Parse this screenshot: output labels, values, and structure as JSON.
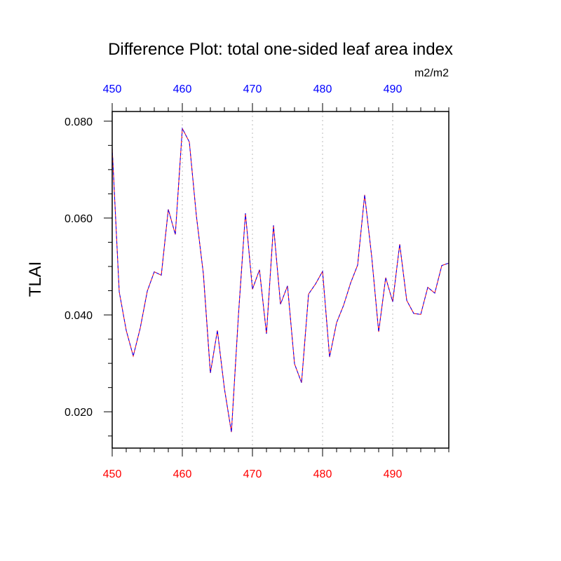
{
  "chart_data": {
    "type": "line",
    "title": "Difference Plot: total one-sided leaf area index",
    "units": "m2/m2",
    "ylabel": "TLAI",
    "xlabel": "",
    "xlim": [
      450,
      498
    ],
    "ylim": [
      0.0125,
      0.082
    ],
    "x_ticks": [
      450,
      460,
      470,
      480,
      490
    ],
    "x_tick_labels": [
      "450",
      "460",
      "470",
      "480",
      "490"
    ],
    "y_ticks": [
      0.02,
      0.04,
      0.06,
      0.08
    ],
    "y_tick_labels": [
      "0.020",
      "0.040",
      "0.060",
      "0.080"
    ],
    "grid": "vertical dotted at major x ticks",
    "colors": {
      "bottom_tick_labels": "#ff0000",
      "top_tick_labels": "#0000ff",
      "series_a": "#ff0000",
      "series_b": "#0000ff",
      "grid": "#bbbbbb"
    },
    "x": [
      450,
      451,
      452,
      453,
      454,
      455,
      456,
      457,
      458,
      459,
      460,
      461,
      462,
      463,
      464,
      465,
      466,
      467,
      468,
      469,
      470,
      471,
      472,
      473,
      474,
      475,
      476,
      477,
      478,
      479,
      480,
      481,
      482,
      483,
      484,
      485,
      486,
      487,
      488,
      489,
      490,
      491,
      492,
      493,
      494,
      495,
      496,
      497,
      498
    ],
    "series": [
      {
        "values": [
          0.0745,
          0.0448,
          0.0368,
          0.0315,
          0.0373,
          0.0449,
          0.0489,
          0.0482,
          0.0618,
          0.0566,
          0.0785,
          0.0757,
          0.0605,
          0.0485,
          0.028,
          0.0368,
          0.0248,
          0.0158,
          0.0399,
          0.061,
          0.0453,
          0.0493,
          0.0361,
          0.0585,
          0.0422,
          0.046,
          0.0299,
          0.026,
          0.0443,
          0.0464,
          0.049,
          0.0313,
          0.0384,
          0.042,
          0.0466,
          0.0503,
          0.0648,
          0.0521,
          0.0365,
          0.0477,
          0.0427,
          0.0546,
          0.043,
          0.0403,
          0.0401,
          0.0457,
          0.0445,
          0.0502,
          0.0507
        ]
      },
      {
        "values": [
          0.0745,
          0.0448,
          0.0368,
          0.0315,
          0.0373,
          0.0449,
          0.0489,
          0.0482,
          0.0618,
          0.0566,
          0.0785,
          0.0757,
          0.0605,
          0.0485,
          0.028,
          0.0368,
          0.0248,
          0.0158,
          0.0399,
          0.061,
          0.0453,
          0.0493,
          0.0361,
          0.0585,
          0.0422,
          0.046,
          0.0299,
          0.026,
          0.0443,
          0.0464,
          0.049,
          0.0313,
          0.0384,
          0.042,
          0.0466,
          0.0503,
          0.0648,
          0.0521,
          0.0365,
          0.0477,
          0.0427,
          0.0546,
          0.043,
          0.0403,
          0.0401,
          0.0457,
          0.0445,
          0.0502,
          0.0507
        ]
      }
    ]
  }
}
